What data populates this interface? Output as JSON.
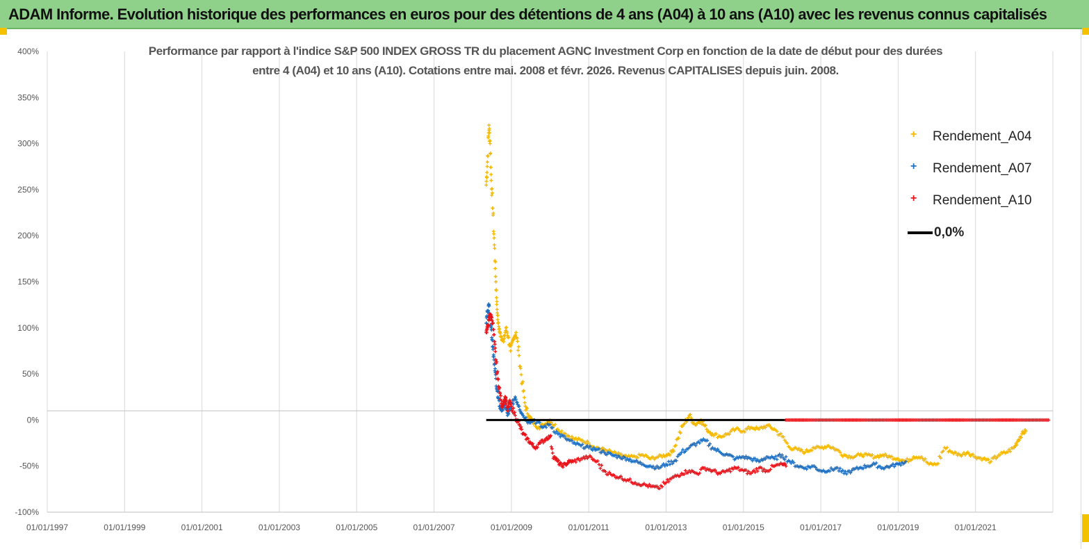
{
  "banner": {
    "title": "ADAM Informe. Evolution historique des performances en euros pour des détentions de 4 ans (A04) à 10 ans (A10) avec les revenus connus capitalisés"
  },
  "colors": {
    "banner_bg": "#8fd18a",
    "a04": "#f5b800",
    "a07": "#1f6fc0",
    "a10": "#e8141b",
    "zero_line": "#000000"
  },
  "chart_data": {
    "type": "scatter",
    "title_line1": "Performance par rapport à l'indice S&P 500 INDEX GROSS TR  du placement AGNC Investment Corp en fonction de la date de début pour des durées",
    "title_line2": "entre 4 (A04) et 10 ans (A10). Cotations entre mai. 2008 et févr. 2026. Revenus CAPITALISES depuis juin. 2008.",
    "xlabel": "",
    "ylabel": "",
    "xlim": [
      1997.0,
      2023.0
    ],
    "ylim": [
      -100,
      400
    ],
    "y_ticks": [
      400,
      350,
      300,
      250,
      200,
      150,
      100,
      50,
      0,
      -50,
      -100
    ],
    "y_tick_labels": [
      "400%",
      "350%",
      "300%",
      "250%",
      "200%",
      "150%",
      "100%",
      "50%",
      "0%",
      "-50%",
      "-100%"
    ],
    "x_ticks": [
      1997,
      1999,
      2001,
      2003,
      2005,
      2007,
      2009,
      2011,
      2013,
      2015,
      2017,
      2019,
      2021
    ],
    "x_tick_labels": [
      "01/01/1997",
      "01/01/1999",
      "01/01/2001",
      "01/01/2003",
      "01/01/2005",
      "01/01/2007",
      "01/01/2009",
      "01/01/2011",
      "01/01/2013",
      "01/01/2015",
      "01/01/2017",
      "01/01/2019",
      "01/01/2021"
    ],
    "grid": "vertical",
    "legend_position": "top-right",
    "series": [
      {
        "name": "Rendement_A04",
        "marker": "plus",
        "color": "#f5b800",
        "x": [
          2008.35,
          2008.38,
          2008.42,
          2008.45,
          2008.48,
          2008.52,
          2008.56,
          2008.6,
          2008.63,
          2008.66,
          2008.7,
          2008.74,
          2008.8,
          2008.86,
          2008.92,
          2008.98,
          2009.05,
          2009.12,
          2009.2,
          2009.28,
          2009.36,
          2009.45,
          2009.55,
          2009.7,
          2009.85,
          2010.0,
          2010.2,
          2010.4,
          2010.6,
          2010.8,
          2011.0,
          2011.2,
          2011.4,
          2011.6,
          2011.8,
          2012.0,
          2012.2,
          2012.4,
          2012.6,
          2012.8,
          2013.0,
          2013.15,
          2013.3,
          2013.45,
          2013.6,
          2013.75,
          2013.9,
          2014.05,
          2014.2,
          2014.4,
          2014.6,
          2014.8,
          2015.0,
          2015.2,
          2015.4,
          2015.6,
          2015.8,
          2016.0,
          2016.2,
          2016.4,
          2016.6,
          2016.8,
          2017.0,
          2017.2,
          2017.4,
          2017.6,
          2017.8,
          2018.0,
          2018.2,
          2018.4,
          2018.6,
          2018.8,
          2019.0,
          2019.2,
          2019.4,
          2019.6,
          2019.8,
          2020.0,
          2020.2,
          2020.4,
          2020.6,
          2020.8,
          2021.0,
          2021.2,
          2021.4,
          2021.6,
          2021.8,
          2022.0,
          2022.1,
          2022.2,
          2022.3
        ],
        "values": [
          255,
          280,
          320,
          300,
          260,
          230,
          190,
          150,
          120,
          105,
          95,
          90,
          85,
          100,
          90,
          75,
          88,
          95,
          70,
          40,
          15,
          5,
          -2,
          -8,
          -5,
          0,
          -10,
          -15,
          -20,
          -22,
          -25,
          -30,
          -32,
          -35,
          -38,
          -40,
          -40,
          -38,
          -42,
          -40,
          -38,
          -35,
          -20,
          -5,
          5,
          -5,
          0,
          -10,
          -15,
          -18,
          -15,
          -10,
          -12,
          -8,
          -10,
          -6,
          -10,
          -18,
          -30,
          -32,
          -35,
          -30,
          -30,
          -28,
          -32,
          -38,
          -40,
          -38,
          -38,
          -40,
          -38,
          -40,
          -42,
          -45,
          -40,
          -40,
          -48,
          -48,
          -30,
          -35,
          -38,
          -35,
          -40,
          -42,
          -45,
          -38,
          -35,
          -30,
          -22,
          -15,
          -12
        ]
      },
      {
        "name": "Rendement_A07",
        "marker": "plus",
        "color": "#1f6fc0",
        "x": [
          2008.35,
          2008.38,
          2008.42,
          2008.45,
          2008.48,
          2008.52,
          2008.56,
          2008.6,
          2008.65,
          2008.7,
          2008.75,
          2008.8,
          2008.85,
          2008.9,
          2008.95,
          2009.0,
          2009.1,
          2009.2,
          2009.3,
          2009.45,
          2009.6,
          2009.8,
          2010.0,
          2010.2,
          2010.4,
          2010.6,
          2010.8,
          2011.0,
          2011.2,
          2011.4,
          2011.6,
          2011.8,
          2012.0,
          2012.2,
          2012.4,
          2012.6,
          2012.8,
          2013.0,
          2013.2,
          2013.4,
          2013.6,
          2013.8,
          2014.0,
          2014.2,
          2014.4,
          2014.6,
          2014.8,
          2015.0,
          2015.2,
          2015.4,
          2015.6,
          2015.8,
          2016.0,
          2016.2,
          2016.4,
          2016.6,
          2016.8,
          2017.0,
          2017.2,
          2017.4,
          2017.6,
          2017.8,
          2018.0,
          2018.2,
          2018.4,
          2018.6,
          2018.8,
          2019.0,
          2019.2
        ],
        "values": [
          105,
          118,
          125,
          110,
          100,
          80,
          60,
          45,
          25,
          15,
          10,
          15,
          20,
          5,
          10,
          15,
          25,
          15,
          5,
          -2,
          0,
          -8,
          -5,
          -15,
          -20,
          -25,
          -28,
          -30,
          -32,
          -35,
          -38,
          -40,
          -42,
          -45,
          -48,
          -50,
          -52,
          -48,
          -45,
          -35,
          -30,
          -25,
          -22,
          -30,
          -35,
          -38,
          -42,
          -40,
          -42,
          -45,
          -40,
          -42,
          -38,
          -45,
          -50,
          -52,
          -50,
          -55,
          -55,
          -52,
          -58,
          -55,
          -52,
          -50,
          -48,
          -52,
          -50,
          -48,
          -45
        ]
      },
      {
        "name": "Rendement_A10",
        "marker": "plus",
        "color": "#e8141b",
        "x": [
          2008.35,
          2008.38,
          2008.42,
          2008.45,
          2008.48,
          2008.52,
          2008.56,
          2008.6,
          2008.65,
          2008.7,
          2008.75,
          2008.8,
          2008.85,
          2008.9,
          2008.95,
          2009.0,
          2009.1,
          2009.2,
          2009.3,
          2009.4,
          2009.5,
          2009.6,
          2009.75,
          2009.9,
          2010.0,
          2010.1,
          2010.2,
          2010.3,
          2010.4,
          2010.5,
          2010.6,
          2010.8,
          2011.0,
          2011.2,
          2011.4,
          2011.6,
          2011.8,
          2012.0,
          2012.2,
          2012.4,
          2012.6,
          2012.8,
          2013.0,
          2013.2,
          2013.4,
          2013.6,
          2013.8,
          2014.0,
          2014.2,
          2014.4,
          2014.6,
          2014.8,
          2015.0,
          2015.2,
          2015.4,
          2015.6,
          2015.8,
          2016.0,
          2016.1
        ],
        "values": [
          95,
          100,
          108,
          115,
          112,
          105,
          85,
          65,
          45,
          30,
          15,
          20,
          25,
          10,
          20,
          15,
          5,
          -5,
          -15,
          -20,
          -25,
          -30,
          -25,
          -20,
          -18,
          -40,
          -45,
          -50,
          -48,
          -45,
          -45,
          -42,
          -40,
          -45,
          -55,
          -60,
          -62,
          -65,
          -68,
          -70,
          -72,
          -74,
          -68,
          -62,
          -58,
          -55,
          -58,
          -52,
          -55,
          -58,
          -55,
          -52,
          -55,
          -58,
          -52,
          -55,
          -50,
          -48,
          -50
        ]
      },
      {
        "name": "0,0%",
        "marker": "line",
        "color": "#000000",
        "x": [
          2008.35,
          2016.1
        ],
        "values": [
          0,
          0
        ]
      },
      {
        "name": "0,0% (red baseline markers)",
        "marker": "plus",
        "color": "#e8141b",
        "x": [
          2016.1,
          2022.9
        ],
        "values": [
          0,
          0
        ]
      }
    ]
  },
  "legend": {
    "items": [
      {
        "label": "Rendement_A04",
        "color": "#f5b800",
        "symbol": "+"
      },
      {
        "label": "Rendement_A07",
        "color": "#1f6fc0",
        "symbol": "+"
      },
      {
        "label": "Rendement_A10",
        "color": "#e8141b",
        "symbol": "+"
      },
      {
        "label": "0,0%",
        "color": "#000000",
        "symbol": "line"
      }
    ]
  }
}
